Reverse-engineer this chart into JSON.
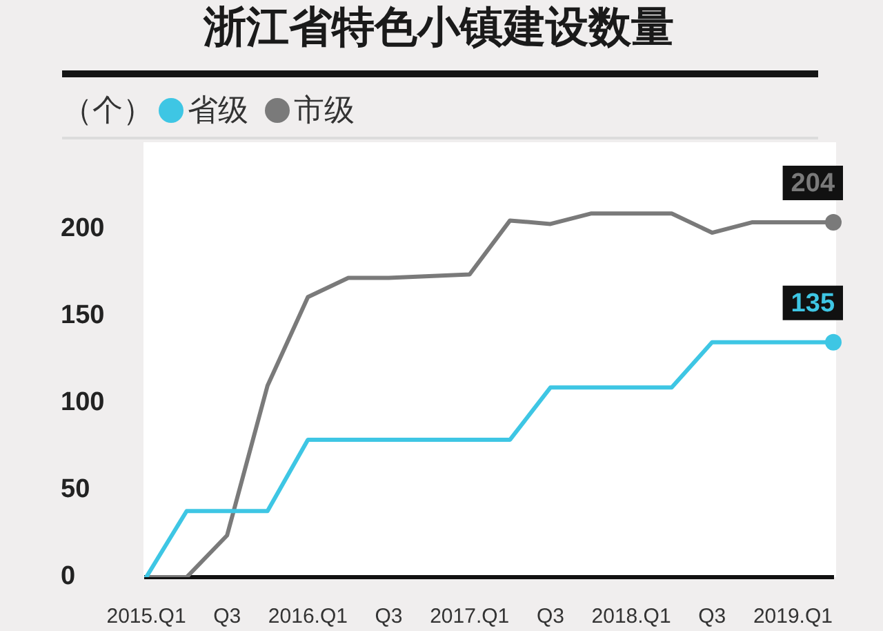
{
  "chart_data": {
    "type": "line",
    "title": "浙江省特色小镇建设数量",
    "ylabel": "（个）",
    "categories": [
      "2015.Q1",
      null,
      "Q3",
      null,
      "2016.Q1",
      null,
      "Q3",
      null,
      "2017.Q1",
      null,
      "Q3",
      null,
      "2018.Q1",
      null,
      "Q3",
      null,
      "2019.Q1",
      null
    ],
    "series": [
      {
        "name": "省级",
        "color": "#3ec6e4",
        "values": [
          0,
          38,
          38,
          38,
          79,
          79,
          79,
          79,
          79,
          79,
          109,
          109,
          109,
          109,
          135,
          135,
          135,
          135
        ],
        "value_labels": [
          null,
          null,
          null,
          null,
          null,
          null,
          null,
          null,
          null,
          null,
          null,
          null,
          null,
          null,
          null,
          null,
          null,
          "135"
        ]
      },
      {
        "name": "市级",
        "color": "#7a7a7a",
        "values": [
          0,
          0,
          24,
          110,
          161,
          172,
          172,
          173,
          174,
          205,
          203,
          209,
          209,
          209,
          198,
          204,
          204,
          204
        ],
        "value_labels": [
          null,
          null,
          null,
          null,
          null,
          null,
          null,
          null,
          null,
          null,
          null,
          null,
          null,
          null,
          null,
          null,
          null,
          "204"
        ]
      }
    ],
    "ylim": [
      0,
      250
    ],
    "yticks": [
      0,
      50,
      100,
      150,
      200
    ],
    "grid": false,
    "legend": "top left",
    "line_style": "solid"
  }
}
